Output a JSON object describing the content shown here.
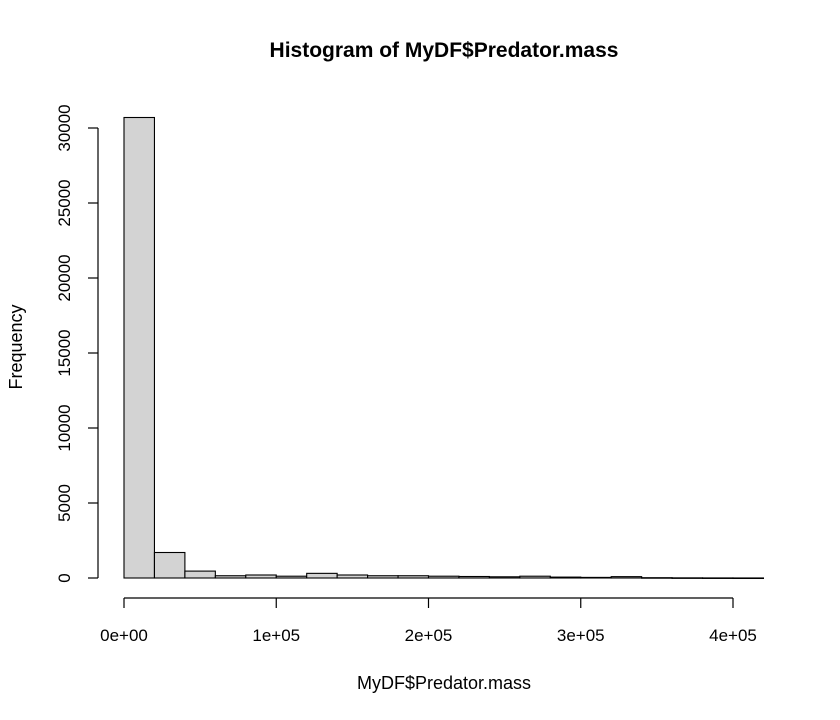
{
  "chart_data": {
    "type": "bar",
    "title": "Histogram of MyDF$Predator.mass",
    "xlabel": "MyDF$Predator.mass",
    "ylabel": "Frequency",
    "xlim": [
      0,
      420000
    ],
    "ylim": [
      0,
      30000
    ],
    "bin_width": 20000,
    "x_ticks": [
      {
        "value": 0,
        "label": "0e+00"
      },
      {
        "value": 100000,
        "label": "1e+05"
      },
      {
        "value": 200000,
        "label": "2e+05"
      },
      {
        "value": 300000,
        "label": "3e+05"
      },
      {
        "value": 400000,
        "label": "4e+05"
      }
    ],
    "y_ticks": [
      {
        "value": 0,
        "label": "0"
      },
      {
        "value": 5000,
        "label": "5000"
      },
      {
        "value": 10000,
        "label": "10000"
      },
      {
        "value": 15000,
        "label": "15000"
      },
      {
        "value": 20000,
        "label": "20000"
      },
      {
        "value": 25000,
        "label": "25000"
      },
      {
        "value": 30000,
        "label": "30000"
      }
    ],
    "bins": [
      {
        "start": 0,
        "end": 20000,
        "count": 30700
      },
      {
        "start": 20000,
        "end": 40000,
        "count": 1700
      },
      {
        "start": 40000,
        "end": 60000,
        "count": 460
      },
      {
        "start": 60000,
        "end": 80000,
        "count": 150
      },
      {
        "start": 80000,
        "end": 100000,
        "count": 200
      },
      {
        "start": 100000,
        "end": 120000,
        "count": 120
      },
      {
        "start": 120000,
        "end": 140000,
        "count": 310
      },
      {
        "start": 140000,
        "end": 160000,
        "count": 200
      },
      {
        "start": 160000,
        "end": 180000,
        "count": 150
      },
      {
        "start": 180000,
        "end": 200000,
        "count": 150
      },
      {
        "start": 200000,
        "end": 220000,
        "count": 120
      },
      {
        "start": 220000,
        "end": 240000,
        "count": 100
      },
      {
        "start": 240000,
        "end": 260000,
        "count": 80
      },
      {
        "start": 260000,
        "end": 280000,
        "count": 120
      },
      {
        "start": 280000,
        "end": 300000,
        "count": 60
      },
      {
        "start": 300000,
        "end": 320000,
        "count": 40
      },
      {
        "start": 320000,
        "end": 340000,
        "count": 90
      },
      {
        "start": 340000,
        "end": 360000,
        "count": 20
      },
      {
        "start": 360000,
        "end": 380000,
        "count": 10
      },
      {
        "start": 380000,
        "end": 400000,
        "count": 5
      },
      {
        "start": 400000,
        "end": 420000,
        "count": 3
      }
    ]
  }
}
